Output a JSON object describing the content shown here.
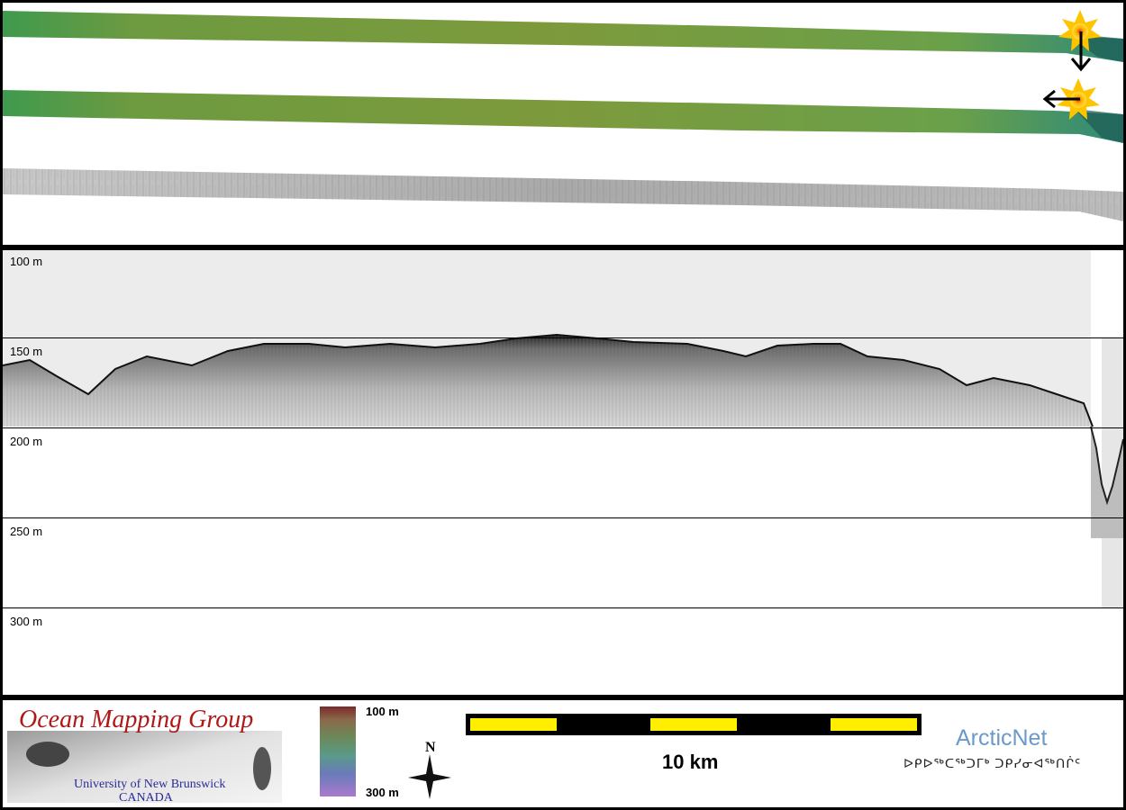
{
  "profile": {
    "depth_labels": [
      "100 m",
      "150 m",
      "200 m",
      "250 m",
      "300 m"
    ]
  },
  "footer": {
    "logo": {
      "title": "Ocean Mapping Group",
      "university": "University of New Brunswick",
      "country": "CANADA"
    },
    "colorbar": {
      "top_label": "100 m",
      "bottom_label": "300 m"
    },
    "north_arrow": "N",
    "scale_bar": {
      "label": "10 km"
    },
    "partner": {
      "name": "ArcticNet",
      "syllabics": "ᐅᑭᐅᖅᑕᖅᑐᒥᒃ ᑐᑭᓯᓂᐊᖅᑎᒌᑦ"
    }
  },
  "colors": {
    "swath_green": "#7a9a3a",
    "scale_yellow": "#ffee00",
    "omg_red": "#b01818",
    "arcticnet_blue": "#6b9ac8"
  }
}
